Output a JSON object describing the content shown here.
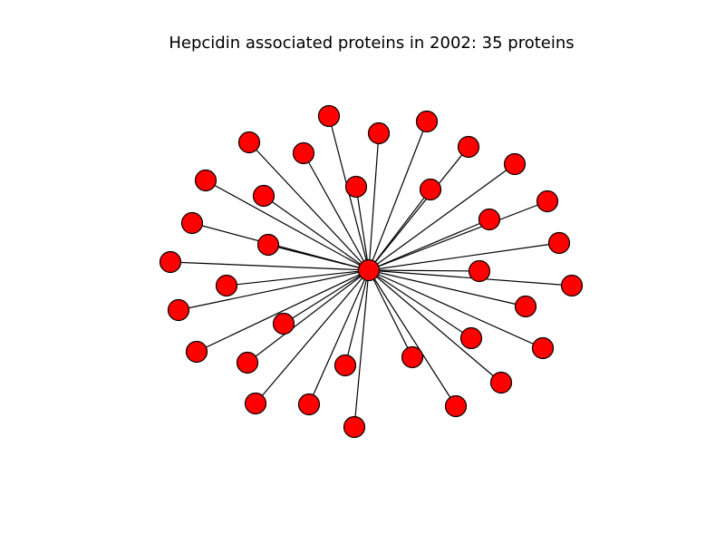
{
  "title": "Hepcidin associated proteins in 2002: 35 proteins",
  "colors": {
    "node_fill": "#ff0000",
    "node_stroke": "#000000",
    "edge": "#000000",
    "background": "#ffffff"
  },
  "graph": {
    "hub": {
      "id": "hub"
    },
    "leaves": [
      "n1",
      "n2",
      "n3",
      "n4",
      "n5",
      "n6",
      "n7",
      "n8",
      "n9",
      "n10",
      "n11",
      "n12",
      "n13",
      "n14",
      "n15",
      "n16",
      "n17",
      "n18",
      "n19",
      "n20",
      "n21",
      "n22",
      "n23",
      "n24",
      "n25",
      "n26",
      "n27",
      "n28",
      "n29",
      "n30",
      "n31",
      "n32",
      "n33",
      "n34"
    ]
  }
}
